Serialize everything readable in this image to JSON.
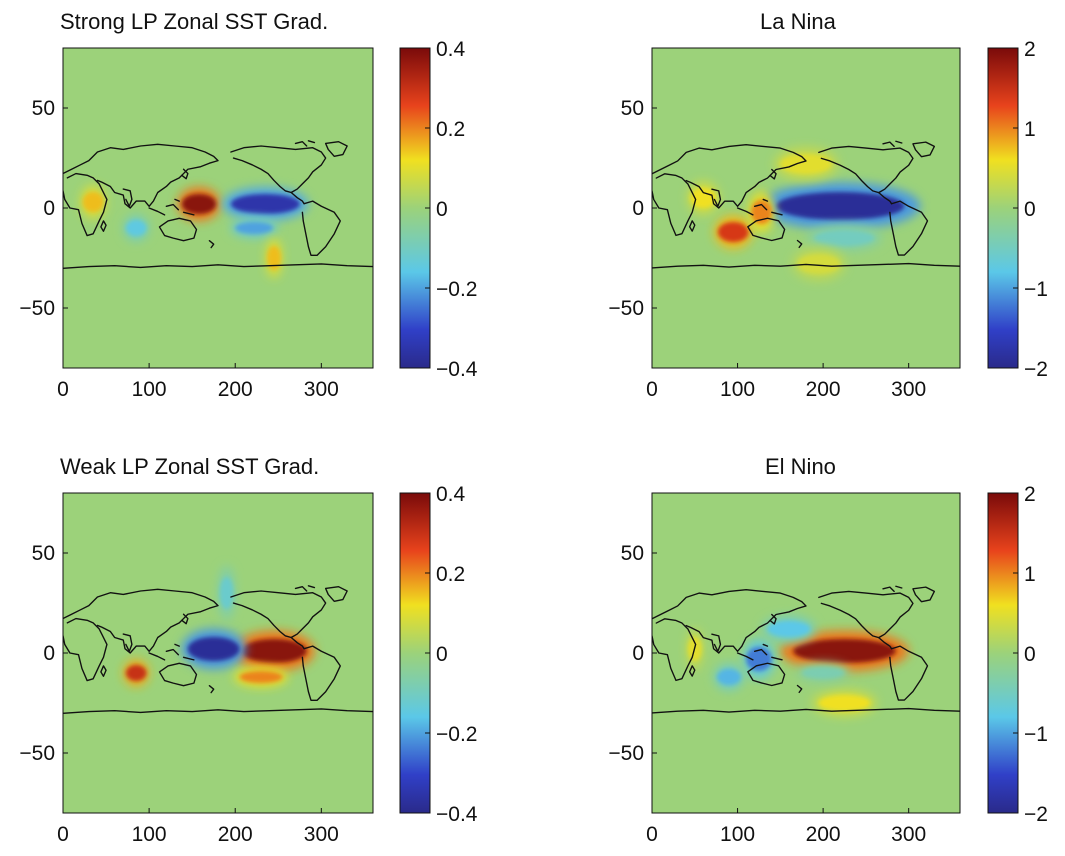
{
  "chart_data": [
    {
      "type": "heatmap",
      "title": "Strong LP Zonal SST Grad.",
      "x_ticks": [
        "0",
        "100",
        "200",
        "300"
      ],
      "x_tick_values": [
        0,
        100,
        200,
        300
      ],
      "y_ticks": [
        "50",
        "0",
        "−50"
      ],
      "y_tick_values": [
        50,
        0,
        -50
      ],
      "xlim": [
        0,
        360
      ],
      "ylim": [
        -80,
        80
      ],
      "colorbar_ticks": [
        "0.4",
        "0.2",
        "0",
        "−0.2",
        "−0.4"
      ],
      "colorbar_values": [
        0.4,
        0.2,
        0,
        -0.2,
        -0.4
      ],
      "clim": [
        -0.4,
        0.4
      ],
      "features": [
        {
          "lon": 158,
          "lat": 2,
          "rx": 20,
          "ry": 5,
          "value": 0.38
        },
        {
          "lon": 235,
          "lat": 2,
          "rx": 40,
          "ry": 5,
          "value": -0.35
        },
        {
          "lon": 222,
          "lat": -10,
          "rx": 22,
          "ry": 3,
          "value": -0.2
        },
        {
          "lon": 245,
          "lat": -25,
          "rx": 8,
          "ry": 6,
          "value": 0.15
        },
        {
          "lon": 85,
          "lat": -10,
          "rx": 12,
          "ry": 4,
          "value": -0.15
        },
        {
          "lon": 35,
          "lat": 3,
          "rx": 12,
          "ry": 5,
          "value": 0.15
        }
      ]
    },
    {
      "type": "heatmap",
      "title": "La Nina",
      "x_ticks": [
        "0",
        "100",
        "200",
        "300"
      ],
      "x_tick_values": [
        0,
        100,
        200,
        300
      ],
      "y_ticks": [
        "50",
        "0",
        "−50"
      ],
      "y_tick_values": [
        50,
        0,
        -50
      ],
      "xlim": [
        0,
        360
      ],
      "ylim": [
        -80,
        80
      ],
      "colorbar_ticks": [
        "2",
        "1",
        "0",
        "−1",
        "−2"
      ],
      "colorbar_values": [
        2,
        1,
        0,
        -1,
        -2
      ],
      "clim": [
        -2,
        2
      ],
      "features": [
        {
          "lon": 220,
          "lat": 1,
          "rx": 75,
          "ry": 7,
          "value": -1.9
        },
        {
          "lon": 225,
          "lat": -15,
          "rx": 35,
          "ry": 4,
          "value": -0.5
        },
        {
          "lon": 95,
          "lat": -12,
          "rx": 18,
          "ry": 5,
          "value": 1.4
        },
        {
          "lon": 128,
          "lat": -2,
          "rx": 12,
          "ry": 6,
          "value": 1.0
        },
        {
          "lon": 60,
          "lat": 5,
          "rx": 15,
          "ry": 5,
          "value": 0.6
        },
        {
          "lon": 180,
          "lat": 22,
          "rx": 30,
          "ry": 5,
          "value": 0.5
        },
        {
          "lon": 195,
          "lat": -28,
          "rx": 25,
          "ry": 5,
          "value": 0.4
        }
      ]
    },
    {
      "type": "heatmap",
      "title": "Weak LP Zonal SST Grad.",
      "x_ticks": [
        "0",
        "100",
        "200",
        "300"
      ],
      "x_tick_values": [
        0,
        100,
        200,
        300
      ],
      "y_ticks": [
        "50",
        "0",
        "−50"
      ],
      "y_tick_values": [
        50,
        0,
        -50
      ],
      "xlim": [
        0,
        360
      ],
      "ylim": [
        -80,
        80
      ],
      "colorbar_ticks": [
        "0.4",
        "0.2",
        "0",
        "−0.2",
        "−0.4"
      ],
      "colorbar_values": [
        0.4,
        0.2,
        0,
        -0.2,
        -0.4
      ],
      "clim": [
        -0.4,
        0.4
      ],
      "features": [
        {
          "lon": 245,
          "lat": 1,
          "rx": 38,
          "ry": 6,
          "value": 0.38
        },
        {
          "lon": 175,
          "lat": 2,
          "rx": 30,
          "ry": 6,
          "value": -0.38
        },
        {
          "lon": 85,
          "lat": -10,
          "rx": 12,
          "ry": 4,
          "value": 0.3
        },
        {
          "lon": 230,
          "lat": -12,
          "rx": 25,
          "ry": 3,
          "value": 0.2
        },
        {
          "lon": 190,
          "lat": 30,
          "rx": 8,
          "ry": 8,
          "value": -0.12
        }
      ]
    },
    {
      "type": "heatmap",
      "title": "El Nino",
      "x_ticks": [
        "0",
        "100",
        "200",
        "300"
      ],
      "x_tick_values": [
        0,
        100,
        200,
        300
      ],
      "y_ticks": [
        "50",
        "0",
        "−50"
      ],
      "y_tick_values": [
        50,
        0,
        -50
      ],
      "xlim": [
        0,
        360
      ],
      "ylim": [
        -80,
        80
      ],
      "colorbar_ticks": [
        "2",
        "1",
        "0",
        "−1",
        "−2"
      ],
      "colorbar_values": [
        2,
        1,
        0,
        -1,
        -2
      ],
      "clim": [
        -2,
        2
      ],
      "features": [
        {
          "lon": 225,
          "lat": 1,
          "rx": 60,
          "ry": 6,
          "value": 1.9
        },
        {
          "lon": 225,
          "lat": -25,
          "rx": 30,
          "ry": 4,
          "value": 0.6
        },
        {
          "lon": 125,
          "lat": -3,
          "rx": 15,
          "ry": 6,
          "value": -1.2
        },
        {
          "lon": 90,
          "lat": -12,
          "rx": 14,
          "ry": 4,
          "value": -0.9
        },
        {
          "lon": 160,
          "lat": 12,
          "rx": 25,
          "ry": 4,
          "value": -0.8
        },
        {
          "lon": 50,
          "lat": 2,
          "rx": 8,
          "ry": 6,
          "value": 0.5
        },
        {
          "lon": 200,
          "lat": -10,
          "rx": 25,
          "ry": 3,
          "value": -0.4
        }
      ]
    }
  ],
  "colors": {
    "land_outline": "#111111",
    "colormap_jet": [
      "#00008f",
      "#0000ff",
      "#00ffff",
      "#ffff00",
      "#ff0000",
      "#800000"
    ]
  }
}
